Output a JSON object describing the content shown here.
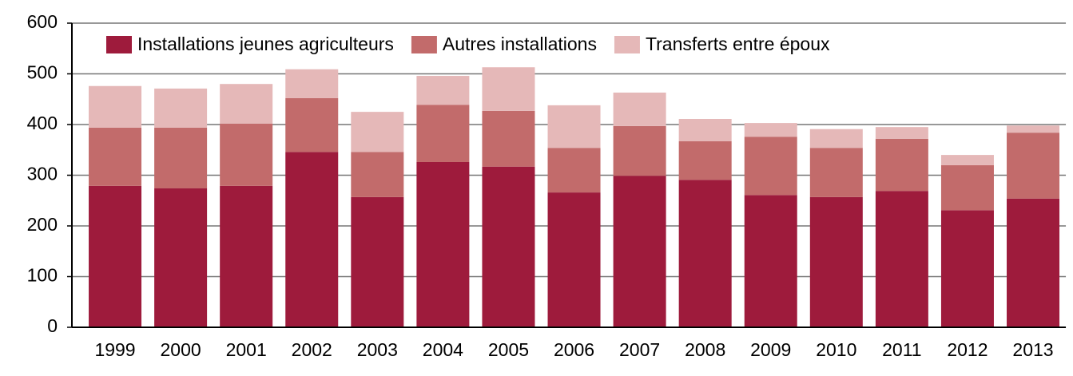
{
  "chart_data": {
    "type": "stacked_bar",
    "categories": [
      "1999",
      "2000",
      "2001",
      "2002",
      "2003",
      "2004",
      "2005",
      "2006",
      "2007",
      "2008",
      "2009",
      "2010",
      "2011",
      "2012",
      "2013"
    ],
    "series": [
      {
        "name": "Installations jeunes agriculteurs",
        "color": "#9e1b3c",
        "values": [
          279,
          274,
          279,
          346,
          257,
          326,
          317,
          266,
          299,
          291,
          261,
          257,
          269,
          231,
          254
        ]
      },
      {
        "name": "Autres installations",
        "color": "#c26b6b",
        "values": [
          115,
          120,
          123,
          106,
          89,
          113,
          110,
          88,
          98,
          76,
          115,
          97,
          103,
          89,
          130
        ]
      },
      {
        "name": "Transferts entre époux",
        "color": "#e5b8b8",
        "values": [
          82,
          77,
          78,
          57,
          79,
          57,
          86,
          84,
          66,
          44,
          27,
          37,
          23,
          20,
          14
        ]
      }
    ],
    "ylim": [
      0,
      600
    ],
    "yticks": [
      0,
      100,
      200,
      300,
      400,
      500,
      600
    ],
    "grid": true,
    "legend": "top"
  }
}
